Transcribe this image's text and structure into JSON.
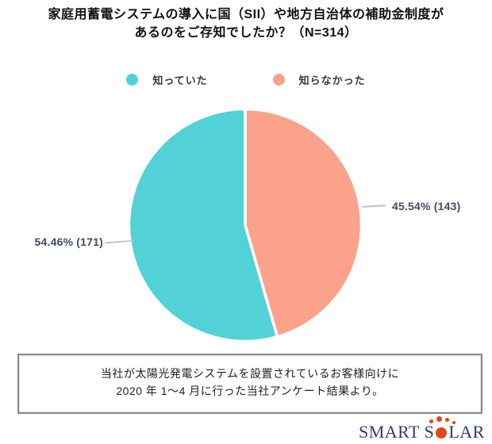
{
  "title": {
    "line1": "家庭用蓄電システムの導入に国（SII）や地方自治体の補助金制度が",
    "line2": "あるのをご存知でしたか？（N=314）"
  },
  "chart_data": {
    "type": "pie",
    "title": "家庭用蓄電システムの導入に国（SII）や地方自治体の補助金制度があるのをご存知でしたか？",
    "sample_size_label": "N=314",
    "n": 314,
    "legend_position": "top",
    "start_angle_deg": 0,
    "direction": "counterclockwise",
    "slices": [
      {
        "label": "知っていた",
        "pct": 54.46,
        "count": 171,
        "display": "54.46% (171)",
        "color": "#52D1D7"
      },
      {
        "label": "知らなかった",
        "pct": 45.54,
        "count": 143,
        "display": "45.54% (143)",
        "color": "#FCA28B"
      }
    ]
  },
  "source_note": {
    "line1": "当社が太陽光発電システムを設置されているお客様向けに",
    "line2": "2020 年 1～4 月に行った当社アンケート結果より。"
  },
  "logo": {
    "part1": "SMART S",
    "part2": "LAR"
  },
  "colors": {
    "title_text": "#111111",
    "legend_text": "#3A3A3A",
    "value_label": "#3D4D66",
    "leader_line": "#B9C4D8",
    "note_text": "#222222",
    "note_border": "#8A8A8A",
    "logo_navy": "#2B3E6B",
    "logo_orange": "#E2461D"
  }
}
